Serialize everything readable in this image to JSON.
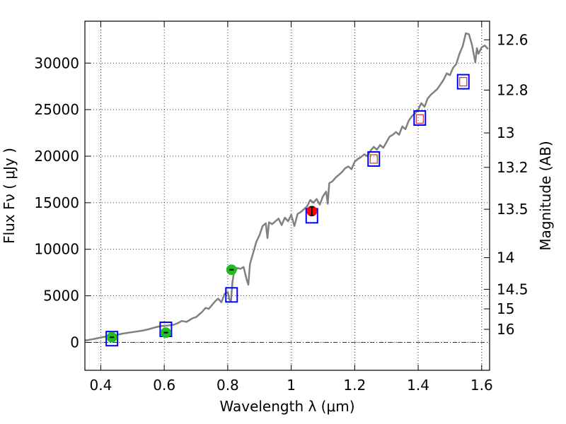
{
  "chart_data": {
    "type": "line",
    "xlabel": "Wavelength  λ (μm)",
    "ylabel": "Flux  Fν  ( μJy )",
    "ylabel_right": "Magnitude (AB)",
    "xlim": [
      0.35,
      1.625
    ],
    "ylim": [
      -3000,
      34500
    ],
    "grid": true,
    "x_ticks": [
      0.4,
      0.6,
      0.8,
      1.0,
      1.2,
      1.4,
      1.6
    ],
    "x_tick_labels": [
      "0.4",
      "0.6",
      "0.8",
      "1",
      "1.2",
      "1.4",
      "1.6"
    ],
    "y_ticks": [
      0,
      5000,
      10000,
      15000,
      20000,
      25000,
      30000
    ],
    "y_tick_labels": [
      "0",
      "5000",
      "10000",
      "15000",
      "20000",
      "25000",
      "30000"
    ],
    "magnitude_ticks": [
      {
        "flux": 32500,
        "label": "12.6"
      },
      {
        "flux": 27100,
        "label": "12.8"
      },
      {
        "flux": 22500,
        "label": "13"
      },
      {
        "flux": 18800,
        "label": "13.2"
      },
      {
        "flux": 14300,
        "label": "13.5"
      },
      {
        "flux": 9100,
        "label": "14"
      },
      {
        "flux": 5700,
        "label": "14.5"
      },
      {
        "flux": 3600,
        "label": "15"
      },
      {
        "flux": 1400,
        "label": "16"
      }
    ],
    "zero_line": 0,
    "spectrum": {
      "color": "#808080",
      "x": [
        0.35,
        0.36,
        0.38,
        0.4,
        0.42,
        0.43,
        0.45,
        0.47,
        0.49,
        0.51,
        0.53,
        0.55,
        0.57,
        0.59,
        0.61,
        0.63,
        0.645,
        0.655,
        0.67,
        0.69,
        0.7,
        0.71,
        0.72,
        0.73,
        0.74,
        0.75,
        0.76,
        0.77,
        0.78,
        0.79,
        0.8,
        0.805,
        0.81,
        0.815,
        0.82,
        0.825,
        0.83,
        0.84,
        0.85,
        0.86,
        0.865,
        0.87,
        0.875,
        0.88,
        0.89,
        0.9,
        0.91,
        0.92,
        0.925,
        0.93,
        0.94,
        0.95,
        0.96,
        0.97,
        0.98,
        0.99,
        1.0,
        1.01,
        1.02,
        1.03,
        1.04,
        1.05,
        1.06,
        1.07,
        1.08,
        1.09,
        1.1,
        1.11,
        1.115,
        1.12,
        1.13,
        1.14,
        1.15,
        1.16,
        1.17,
        1.18,
        1.19,
        1.2,
        1.21,
        1.22,
        1.23,
        1.24,
        1.25,
        1.26,
        1.27,
        1.28,
        1.29,
        1.3,
        1.31,
        1.32,
        1.33,
        1.34,
        1.35,
        1.36,
        1.37,
        1.38,
        1.39,
        1.4,
        1.41,
        1.42,
        1.43,
        1.44,
        1.45,
        1.46,
        1.47,
        1.48,
        1.49,
        1.5,
        1.51,
        1.52,
        1.53,
        1.54,
        1.55,
        1.56,
        1.57,
        1.58,
        1.585,
        1.59,
        1.6,
        1.61,
        1.62
      ],
      "y": [
        200,
        250,
        380,
        520,
        650,
        700,
        800,
        950,
        1050,
        1150,
        1250,
        1400,
        1600,
        1750,
        1800,
        1900,
        2100,
        2300,
        2200,
        2600,
        2700,
        3000,
        3300,
        3700,
        3600,
        4000,
        4400,
        4700,
        4300,
        5200,
        5400,
        4600,
        4400,
        6500,
        7600,
        7700,
        8000,
        7900,
        8100,
        6700,
        6200,
        8400,
        9000,
        9600,
        10800,
        11500,
        12500,
        12800,
        11200,
        12900,
        12700,
        13000,
        13300,
        12600,
        13400,
        13000,
        13700,
        12500,
        13800,
        14000,
        14300,
        14600,
        15300,
        15000,
        15400,
        14800,
        15700,
        16200,
        14900,
        17100,
        17300,
        17700,
        18000,
        18300,
        18700,
        18900,
        18600,
        19400,
        19700,
        19900,
        20200,
        20000,
        20600,
        21000,
        20700,
        21200,
        20900,
        21500,
        22100,
        22300,
        22600,
        22300,
        23200,
        22900,
        23800,
        24300,
        24600,
        25000,
        25700,
        25300,
        26200,
        26600,
        26900,
        27200,
        27700,
        28200,
        28900,
        28700,
        29500,
        29900,
        31000,
        31800,
        33200,
        33100,
        31900,
        30100,
        31600,
        31000,
        31700,
        31900,
        31500
      ]
    },
    "model_points": [
      {
        "x": 0.435,
        "y": 400
      },
      {
        "x": 0.605,
        "y": 1400
      },
      {
        "x": 0.812,
        "y": 5100
      },
      {
        "x": 1.065,
        "y": 13600
      },
      {
        "x": 1.26,
        "y": 19700
      },
      {
        "x": 1.405,
        "y": 24100
      },
      {
        "x": 1.542,
        "y": 28000
      }
    ],
    "green_points": [
      {
        "x": 0.435,
        "y": 550
      },
      {
        "x": 0.605,
        "y": 1050
      },
      {
        "x": 0.812,
        "y": 7800
      }
    ],
    "red_points": [
      {
        "x": 1.065,
        "y": 14100
      }
    ],
    "red_open_points": [
      {
        "x": 1.26,
        "y": 19700
      },
      {
        "x": 1.405,
        "y": 24000
      },
      {
        "x": 1.542,
        "y": 28000
      }
    ],
    "colors": {
      "model_box": "#0000ff",
      "green": "#22bb22",
      "red": "#ff0000",
      "red_open": "#cc3333",
      "errorbar": "#000000"
    }
  }
}
